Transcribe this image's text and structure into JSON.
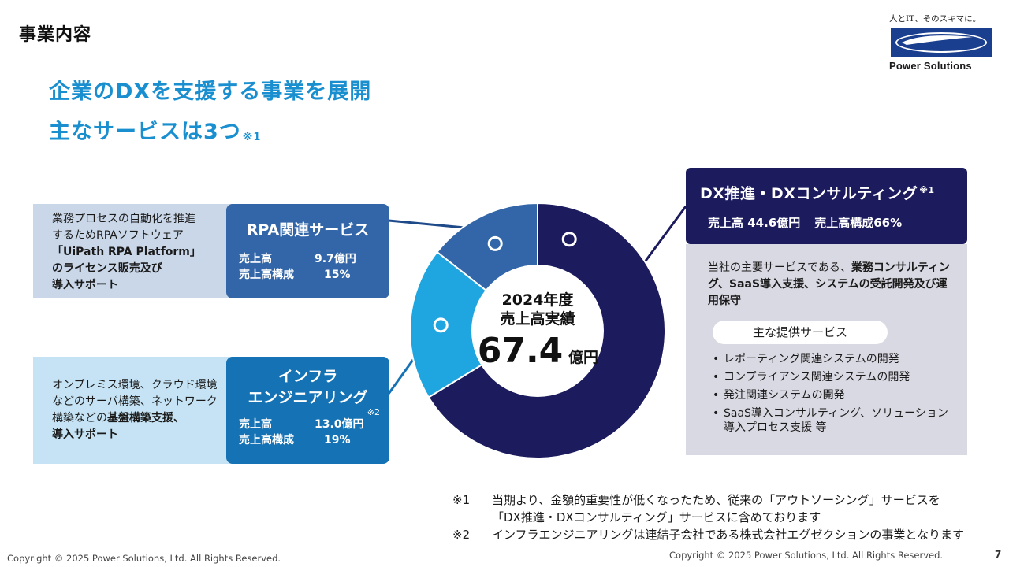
{
  "section_title": "事業内容",
  "headline": {
    "line1": "企業のDXを支援する事業を展開",
    "line2": "主なサービスは3つ",
    "line2_note": "※1"
  },
  "logo": {
    "tagline": "人とIT、そのスキマに。",
    "name": "Power Solutions"
  },
  "rpa": {
    "desc_line1": "業務プロセスの自動化を推進",
    "desc_line2": "するためRPAソフトウェア",
    "desc_line3": "「UiPath RPA Platform」",
    "desc_line4": "のライセンス販売及び",
    "desc_line5": "導入サポート",
    "title": "RPA関連サービス",
    "sales_label": "売上高",
    "sales_value": "9.7億円",
    "share_label": "売上高構成",
    "share_value": "15%"
  },
  "infra": {
    "desc_line1": "オンプレミス環境、クラウド環境",
    "desc_line2": "などのサーバ構築、ネットワーク",
    "desc_line3_a": "構築などの",
    "desc_line3_b": "基盤構築支援、",
    "desc_line4": "導入サポート",
    "title_line1": "インフラ",
    "title_line2": "エンジニアリング",
    "title_note": "※2",
    "sales_label": "売上高",
    "sales_value": "13.0億円",
    "share_label": "売上高構成",
    "share_value": "19%"
  },
  "center": {
    "line1": "2024年度",
    "line2": "売上高実績",
    "value": "67.4",
    "unit": "億円"
  },
  "dx": {
    "title": "DX推進・DXコンサルティング",
    "title_note": "※1",
    "sales": "売上高  44.6億円",
    "share": "売上高構成66%",
    "summary_a": "当社の主要サービスである、",
    "summary_b": "業務コンサルティング、SaaS導入支援、システムの受託開発及び運用保守",
    "services_title": "主な提供サービス",
    "services": [
      "レポーティング関連システムの開発",
      "コンプライアンス関連システムの開発",
      "発注関連システムの開発",
      "SaaS導入コンサルティング、ソリューション導入プロセス支援  等"
    ]
  },
  "notes": {
    "n1_mark": "※1",
    "n1_line1": "当期より、金額的重要性が低くなったため、従来の「アウトソーシング」サービスを",
    "n1_line2": "「DX推進・DXコンサルティング」サービスに含めております",
    "n2_mark": "※2",
    "n2_line1": "インフラエンジニアリングは連結子会社である株式会社エグゼクションの事業となります"
  },
  "copyright": "Copyright © 2025 Power Solutions, Ltd. All Rights Reserved.",
  "page_number": "7",
  "colors": {
    "headline": "#1a8fd0",
    "dx": "#1b1b5e",
    "infra": "#1fa6e0",
    "rpa": "#3266a8"
  },
  "chart_data": {
    "type": "pie",
    "title": "2024年度 売上高実績",
    "total": 67.4,
    "unit": "億円",
    "categories": [
      "DX推進・DXコンサルティング",
      "インフラエンジニアリング",
      "RPA関連サービス"
    ],
    "values": [
      44.6,
      13.0,
      9.7
    ],
    "shares": [
      66,
      19,
      15
    ]
  }
}
